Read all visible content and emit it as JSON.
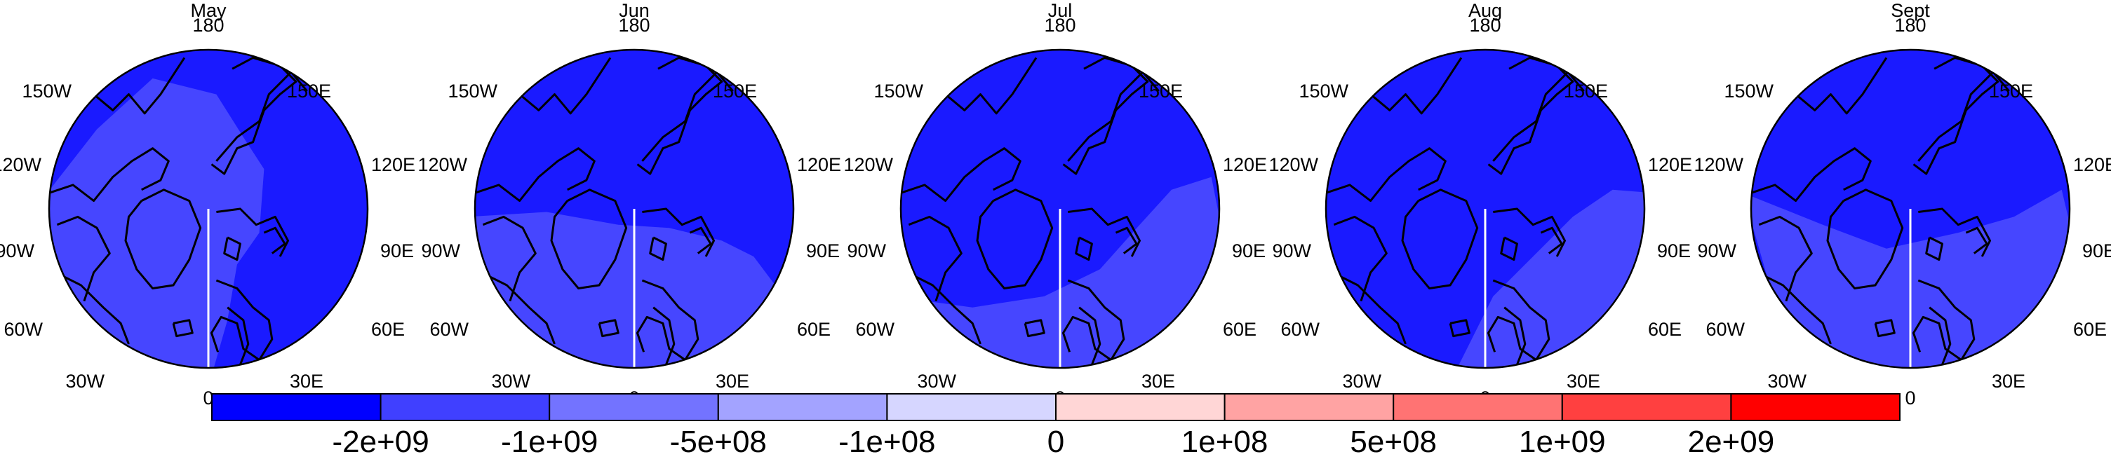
{
  "panels": [
    {
      "title": "May",
      "variant": 0
    },
    {
      "title": "Jun",
      "variant": 1
    },
    {
      "title": "Jul",
      "variant": 2
    },
    {
      "title": "Aug",
      "variant": 3
    },
    {
      "title": "Sept",
      "variant": 4
    }
  ],
  "map_labels": {
    "top": "180",
    "bottom": "0",
    "ul": "150W",
    "ur": "150E",
    "l1": "120W",
    "r1": "120E",
    "l2": "90W",
    "r2": "90E",
    "l3": "60W",
    "r3": "60E",
    "ll": "30W",
    "lr": "30E"
  },
  "colorbar": {
    "colors": [
      "#0000ff",
      "#4040ff",
      "#7373ff",
      "#a3a3ff",
      "#d6d6ff",
      "#ffd6d6",
      "#ffa3a3",
      "#ff7373",
      "#ff4040",
      "#ff0000"
    ],
    "labels": [
      "-2e+09",
      "-1e+09",
      "-5e+08",
      "-1e+08",
      "0",
      "1e+08",
      "5e+08",
      "1e+09",
      "2e+09"
    ]
  },
  "fill_colors": {
    "dark": "#1a1aff",
    "light": "#4646ff"
  }
}
